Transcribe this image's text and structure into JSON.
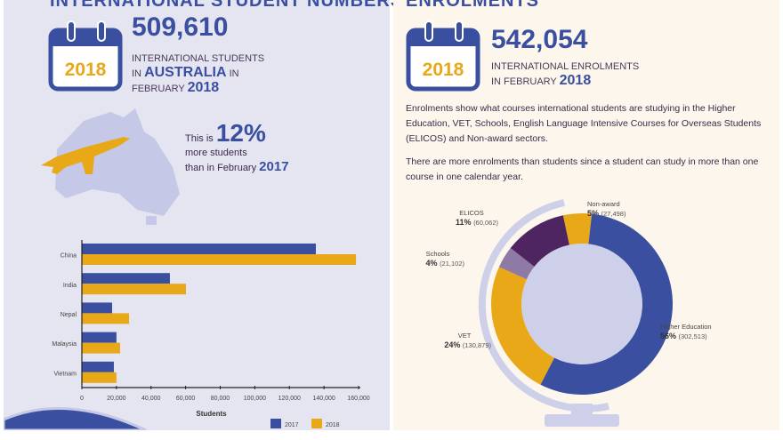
{
  "left": {
    "title": "INTERNATIONAL STUDENT NUMBERS",
    "calendar_year": "2018",
    "total": "509,610",
    "cap1": "INTERNATIONAL STUDENTS",
    "cap2a": "IN",
    "cap2b": "AUSTRALIA",
    "cap2c": "IN",
    "cap3a": "FEBRUARY",
    "cap3b": "2018",
    "growth_a": "This is",
    "growth_pct": "12%",
    "growth_b": "more students",
    "growth_c": "than in February",
    "growth_year": "2017"
  },
  "right": {
    "title": "ENROLMENTS",
    "calendar_year": "2018",
    "total": "542,054",
    "cap1": "INTERNATIONAL ENROLMENTS",
    "cap2a": "IN FEBRUARY",
    "cap2b": "2018",
    "para1": "Enrolments show what courses international students are studying in the Higher Education, VET, Schools, English Language Intensive Courses for Overseas Students (ELICOS) and Non-award sectors.",
    "para2": "There are more enrolments than students since a student can study in more than one course in one calendar year."
  },
  "colors": {
    "blue": "#3a4fa0",
    "gold": "#e8a818",
    "purple": "#4e2560",
    "lilac": "#8e7aa5",
    "light": "#cdd0e8"
  },
  "chart_data": [
    {
      "type": "bar",
      "orientation": "horizontal",
      "categories": [
        "China",
        "India",
        "Nepal",
        "Malaysia",
        "Vietnam"
      ],
      "series": [
        {
          "name": "2017",
          "color": "#3a4fa0",
          "values": [
            135300,
            50900,
            17500,
            20000,
            18500
          ]
        },
        {
          "name": "2018",
          "color": "#e8a818",
          "values": [
            158500,
            60200,
            27300,
            22100,
            20000
          ]
        }
      ],
      "xlabel": "Students",
      "xlim": [
        0,
        160000
      ],
      "ticks": [
        "0",
        "20,000",
        "40,000",
        "60,000",
        "80,000",
        "100,000",
        "120,000",
        "140,000",
        "160,000"
      ],
      "legend": "bottom-right"
    },
    {
      "type": "pie",
      "variant": "donut",
      "slices": [
        {
          "label": "Non-award",
          "pct": "5%",
          "value": 27498,
          "value_label": "(27,498)",
          "color": "#e8a818"
        },
        {
          "label": "Higher Education",
          "pct": "56%",
          "value": 302513,
          "value_label": "(302,513)",
          "color": "#3a4fa0"
        },
        {
          "label": "VET",
          "pct": "24%",
          "value": 130879,
          "value_label": "(130,879)",
          "color": "#e8a818"
        },
        {
          "label": "Schools",
          "pct": "4%",
          "value": 21102,
          "value_label": "(21,102)",
          "color": "#8e7aa5"
        },
        {
          "label": "ELICOS",
          "pct": "11%",
          "value": 60062,
          "value_label": "(60,062)",
          "color": "#4e2560"
        }
      ]
    }
  ]
}
